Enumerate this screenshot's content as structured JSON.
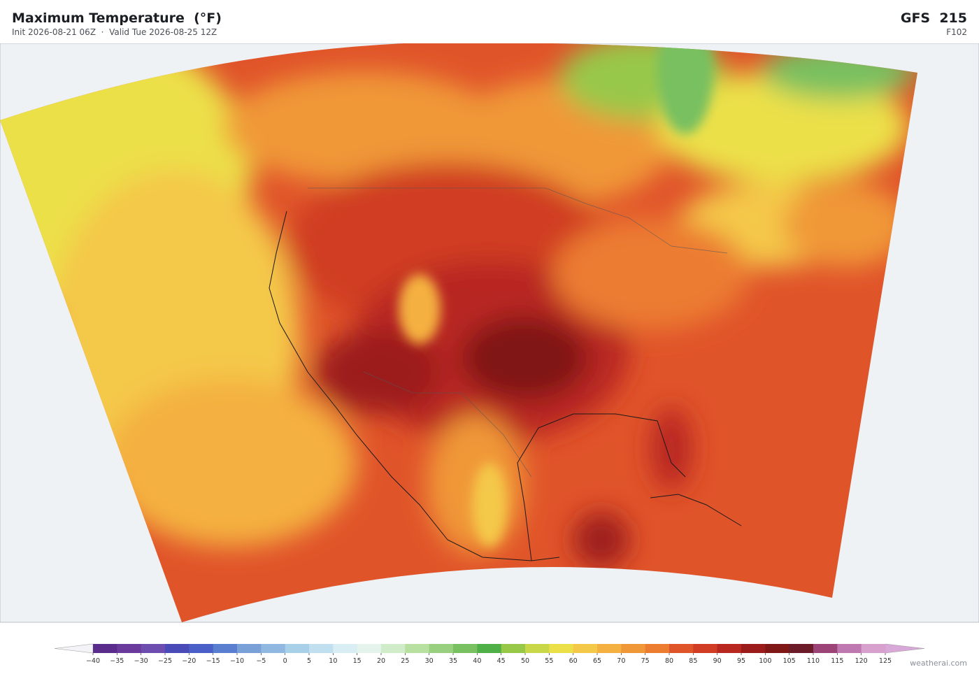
{
  "header": {
    "title": "Maximum Temperature  (°F)",
    "subtitle": "Init 2026-08-21 06Z  ·  Valid Tue 2026-08-25 12Z",
    "model": "GFS  215",
    "forecast_hour": "F102"
  },
  "colorbar": {
    "ticks": [
      {
        "value": -40,
        "label": "−40"
      },
      {
        "value": -35,
        "label": "−35"
      },
      {
        "value": -30,
        "label": "−30"
      },
      {
        "value": -25,
        "label": "−25"
      },
      {
        "value": -20,
        "label": "−20"
      },
      {
        "value": -15,
        "label": "−15"
      },
      {
        "value": -10,
        "label": "−10"
      },
      {
        "value": -5,
        "label": "−5"
      },
      0,
      5,
      10,
      15,
      20,
      25,
      30,
      35,
      40,
      45,
      50,
      55,
      60,
      65,
      70,
      75,
      80,
      85,
      90,
      95,
      100,
      105,
      110,
      115,
      120,
      125
    ],
    "colors": [
      "#5a2d8c",
      "#6a3a9c",
      "#6e4db0",
      "#4a4ab8",
      "#4a5fc8",
      "#5a7fd0",
      "#7aa0d8",
      "#90b8e0",
      "#a8d0e8",
      "#c0e0f0",
      "#d8eef4",
      "#e4f4ec",
      "#d0ecc8",
      "#b8e0a0",
      "#98d080",
      "#78c060",
      "#50b048",
      "#98c848",
      "#c8d848",
      "#ece048",
      "#f4c848",
      "#f4b040",
      "#f09838",
      "#ec7c30",
      "#e0542a",
      "#d03c24",
      "#b82820",
      "#9c1c1c",
      "#801818",
      "#6c1c28",
      "#9c4478",
      "#c078b0",
      "#d8a0cc"
    ],
    "under_color": "#f4f4f8",
    "over_color": "#d8a8d8"
  },
  "footer": {
    "credit": "weatherai.com"
  }
}
